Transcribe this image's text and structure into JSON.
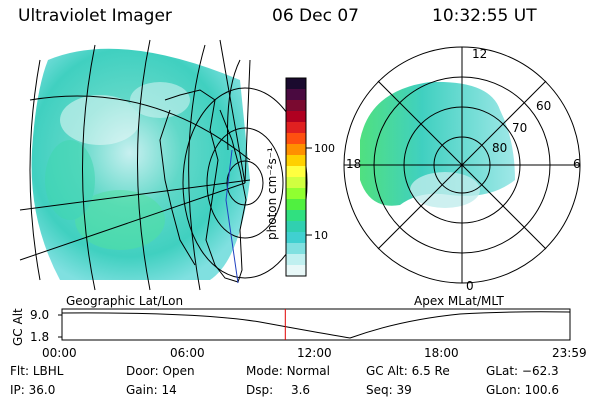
{
  "header": {
    "instrument": "Ultraviolet Imager",
    "date": "06 Dec 07",
    "time": "10:32:55 UT"
  },
  "colorbar": {
    "unit_label": "photon cm⁻²s⁻¹",
    "ticks": [
      "100",
      "10"
    ],
    "colors": [
      "#1a0a2e",
      "#4a0a40",
      "#7a0a30",
      "#b00020",
      "#e02020",
      "#ff5010",
      "#ff9000",
      "#ffd000",
      "#ffff40",
      "#d0ff40",
      "#90ff30",
      "#50f040",
      "#30e080",
      "#30d0b0",
      "#40d0d0",
      "#80e0e0",
      "#c0f0f0",
      "#e8f8f8"
    ]
  },
  "geo_map": {
    "label": "Geographic Lat/Lon"
  },
  "polar_map": {
    "label": "Apex MLat/MLT",
    "mlt_labels": {
      "top": "12",
      "left": "18",
      "right": "6",
      "bottom": "0"
    },
    "lat_labels": [
      "60",
      "70",
      "80"
    ]
  },
  "altitude_plot": {
    "ylabel": "GC Alt",
    "yticks": [
      "9.0",
      "1.8"
    ],
    "xticks": [
      "00:00",
      "06:00",
      "12:00",
      "18:00",
      "23:59"
    ],
    "current_time_fraction": 0.4395,
    "marker_color": "#e00000"
  },
  "info": {
    "filter": {
      "label": "Flt:",
      "value": "LBHL"
    },
    "ip": {
      "label": "IP:",
      "value": "36.0"
    },
    "door": {
      "label": "Door:",
      "value": "Open"
    },
    "gain": {
      "label": "Gain:",
      "value": "14"
    },
    "mode": {
      "label": "Mode:",
      "value": "Normal"
    },
    "dsp": {
      "label": "Dsp:",
      "value": "3.6"
    },
    "gc_alt": {
      "label": "GC Alt:",
      "value": "6.5 Re"
    },
    "seq": {
      "label": "Seq:",
      "value": "39"
    },
    "glat": {
      "label": "GLat:",
      "value": "−62.3"
    },
    "glon": {
      "label": "GLon:",
      "value": "100.6"
    }
  }
}
